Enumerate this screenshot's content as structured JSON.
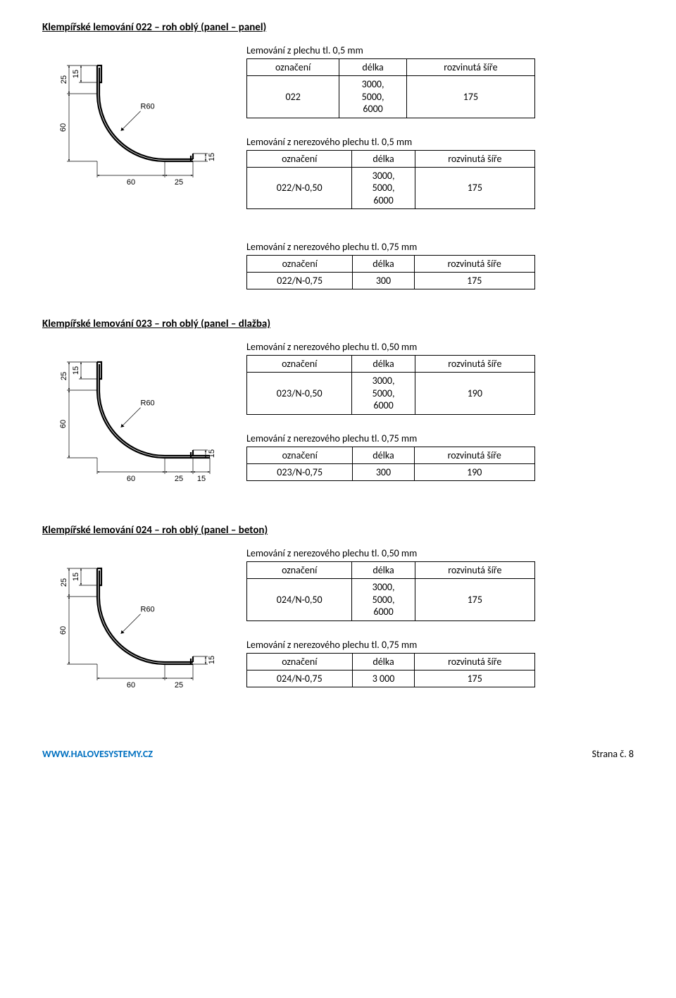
{
  "sections": {
    "s022": {
      "title": "Klempířské lemování  022 – roh oblý (panel – panel)",
      "t1": {
        "caption": "Lemování z  plechu tl. 0,5 mm",
        "h1": "označení",
        "h2": "délka",
        "h3": "rozvinutá šíře",
        "c1": "022",
        "c2": "3000,\n5000,\n6000",
        "c3": "175"
      },
      "t2": {
        "caption": "Lemování z nerezového plechu tl. 0,5 mm",
        "h1": "označení",
        "h2": "délka",
        "h3": "rozvinutá šíře",
        "c1": "022/N-0,50",
        "c2": "3000,\n5000,\n6000",
        "c3": "175"
      },
      "t3": {
        "caption": "Lemování z nerezového  plechu tl. 0,75 mm",
        "h1": "označení",
        "h2": "délka",
        "h3": "rozvinutá šíře",
        "c1": "022/N-0,75",
        "c2": "300",
        "c3": "175"
      }
    },
    "s023": {
      "title": "Klempířské lemování  023 – roh oblý (panel – dlažba)",
      "t1": {
        "caption": "Lemování z nerezového  plechu tl. 0,50 mm",
        "h1": "označení",
        "h2": "délka",
        "h3": "rozvinutá šíře",
        "c1": "023/N-0,50",
        "c2": "3000,\n5000,\n6000",
        "c3": "190"
      },
      "t2": {
        "caption": "Lemování z nerezového  plechu tl. 0,75 mm",
        "h1": "označení",
        "h2": "délka",
        "h3": "rozvinutá šíře",
        "c1": "023/N-0,75",
        "c2": "300",
        "c3": "190"
      }
    },
    "s024": {
      "title": "Klempířské lemování  024 – roh oblý (panel – beton)",
      "t1": {
        "caption": "Lemování z nerezového  plechu tl. 0,50 mm",
        "h1": "označení",
        "h2": "délka",
        "h3": "rozvinutá šíře",
        "c1": "024/N-0,50",
        "c2": "3000,\n5000,\n6000",
        "c3": "175"
      },
      "t2": {
        "caption": "Lemování z nerezového  plechu tl. 0,75 mm",
        "h1": "označení",
        "h2": "délka",
        "h3": "rozvinutá šíře",
        "c1": "024/N-0,75",
        "c2": "3 000",
        "c3": "175"
      }
    }
  },
  "diagrams": {
    "d022": {
      "dim_top_left_v1": "15",
      "dim_top_left_v2": "25",
      "dim_left_v": "60",
      "dim_bottom_h1": "60",
      "dim_bottom_h2": "25",
      "dim_inner_h": "15",
      "radius": "R60",
      "has_right_flange": false
    },
    "d023": {
      "dim_top_left_v1": "15",
      "dim_top_left_v2": "25",
      "dim_left_v": "60",
      "dim_bottom_h1": "60",
      "dim_bottom_h2": "25",
      "dim_bottom_h3": "15",
      "dim_inner_h": "15",
      "radius": "R60",
      "has_right_flange": true
    },
    "d024": {
      "dim_top_left_v1": "15",
      "dim_top_left_v2": "25",
      "dim_left_v": "60",
      "dim_bottom_h1": "60",
      "dim_bottom_h2": "25",
      "dim_inner_h": "15",
      "radius": "R60",
      "has_right_flange": false
    }
  },
  "footer": {
    "left": "WWW.HALOVESYSTEMY.CZ",
    "right": "Strana č. 8"
  },
  "style": {
    "stroke": "#000",
    "thin": 0.7,
    "thick": 2.2,
    "font": "11px Arial"
  }
}
